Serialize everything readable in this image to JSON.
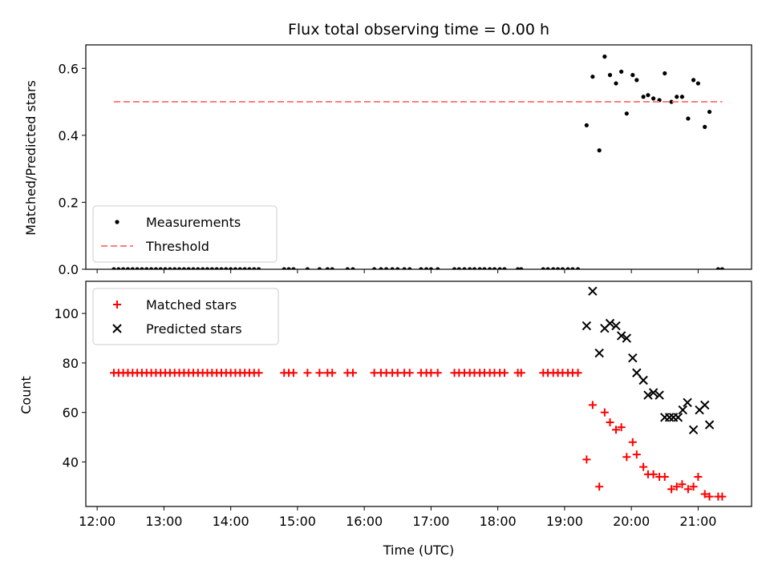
{
  "chart_data": {
    "title": "Flux total observing time = 0.00 h",
    "xlabel": "Time (UTC)",
    "x_ticks": [
      "12:00",
      "13:00",
      "14:00",
      "15:00",
      "16:00",
      "17:00",
      "18:00",
      "19:00",
      "20:00",
      "21:00"
    ],
    "x_tick_hours": [
      12,
      13,
      14,
      15,
      16,
      17,
      18,
      19,
      20,
      21
    ],
    "xlim_hours": [
      11.83,
      21.8
    ],
    "panels": [
      {
        "type": "scatter",
        "ylabel": "Matched/Predicted stars",
        "ylim": [
          0,
          0.67
        ],
        "y_ticks": [
          "0.0",
          "0.2",
          "0.4",
          "0.6"
        ],
        "y_tick_values": [
          0.0,
          0.2,
          0.4,
          0.6
        ],
        "legend_position": "lower-left",
        "series": [
          {
            "name": "Measurements",
            "marker": "dot",
            "color": "#000000",
            "points": [
              [
                12.25,
                0
              ],
              [
                12.32,
                0
              ],
              [
                12.39,
                0
              ],
              [
                12.46,
                0
              ],
              [
                12.53,
                0
              ],
              [
                12.6,
                0
              ],
              [
                12.67,
                0
              ],
              [
                12.74,
                0
              ],
              [
                12.81,
                0
              ],
              [
                12.88,
                0
              ],
              [
                12.95,
                0
              ],
              [
                13.02,
                0
              ],
              [
                13.09,
                0
              ],
              [
                13.16,
                0
              ],
              [
                13.23,
                0
              ],
              [
                13.3,
                0
              ],
              [
                13.37,
                0
              ],
              [
                13.44,
                0
              ],
              [
                13.51,
                0
              ],
              [
                13.58,
                0
              ],
              [
                13.65,
                0
              ],
              [
                13.72,
                0
              ],
              [
                13.79,
                0
              ],
              [
                13.86,
                0
              ],
              [
                13.93,
                0
              ],
              [
                14.0,
                0
              ],
              [
                14.07,
                0
              ],
              [
                14.14,
                0
              ],
              [
                14.21,
                0
              ],
              [
                14.28,
                0
              ],
              [
                14.35,
                0
              ],
              [
                14.42,
                0
              ],
              [
                14.8,
                0
              ],
              [
                14.87,
                0
              ],
              [
                14.94,
                0
              ],
              [
                15.15,
                0
              ],
              [
                15.33,
                0
              ],
              [
                15.45,
                0
              ],
              [
                15.52,
                0
              ],
              [
                15.75,
                0
              ],
              [
                15.83,
                0
              ],
              [
                16.15,
                0
              ],
              [
                16.25,
                0
              ],
              [
                16.33,
                0
              ],
              [
                16.42,
                0
              ],
              [
                16.5,
                0
              ],
              [
                16.6,
                0
              ],
              [
                16.68,
                0
              ],
              [
                16.85,
                0
              ],
              [
                16.93,
                0
              ],
              [
                17.0,
                0
              ],
              [
                17.1,
                0
              ],
              [
                17.35,
                0
              ],
              [
                17.42,
                0
              ],
              [
                17.5,
                0
              ],
              [
                17.58,
                0
              ],
              [
                17.65,
                0
              ],
              [
                17.73,
                0
              ],
              [
                17.8,
                0
              ],
              [
                17.88,
                0
              ],
              [
                17.95,
                0
              ],
              [
                18.03,
                0
              ],
              [
                18.1,
                0
              ],
              [
                18.3,
                0
              ],
              [
                18.35,
                0
              ],
              [
                18.68,
                0
              ],
              [
                18.75,
                0
              ],
              [
                18.83,
                0
              ],
              [
                18.9,
                0
              ],
              [
                18.97,
                0
              ],
              [
                19.05,
                0
              ],
              [
                19.12,
                0
              ],
              [
                19.2,
                0
              ],
              [
                19.33,
                0.43
              ],
              [
                19.42,
                0.575
              ],
              [
                19.52,
                0.355
              ],
              [
                19.6,
                0.635
              ],
              [
                19.68,
                0.58
              ],
              [
                19.77,
                0.555
              ],
              [
                19.85,
                0.59
              ],
              [
                19.93,
                0.465
              ],
              [
                20.02,
                0.58
              ],
              [
                20.08,
                0.565
              ],
              [
                20.18,
                0.515
              ],
              [
                20.25,
                0.52
              ],
              [
                20.33,
                0.51
              ],
              [
                20.42,
                0.505
              ],
              [
                20.5,
                0.585
              ],
              [
                20.6,
                0.5
              ],
              [
                20.68,
                0.515
              ],
              [
                20.76,
                0.515
              ],
              [
                20.85,
                0.45
              ],
              [
                20.93,
                0.565
              ],
              [
                21.0,
                0.555
              ],
              [
                21.1,
                0.425
              ],
              [
                21.17,
                0.47
              ],
              [
                21.3,
                0
              ],
              [
                21.36,
                0
              ]
            ]
          },
          {
            "name": "Threshold",
            "marker": "dashed-line",
            "color": "#ff7f7f",
            "points": [
              [
                12.25,
                0.5
              ],
              [
                21.36,
                0.5
              ]
            ]
          }
        ]
      },
      {
        "type": "scatter",
        "ylabel": "Count",
        "ylim": [
          22,
          113
        ],
        "y_ticks": [
          "40",
          "60",
          "80",
          "100"
        ],
        "y_tick_values": [
          40,
          60,
          80,
          100
        ],
        "legend_position": "upper-left",
        "series": [
          {
            "name": "Matched stars",
            "marker": "plus",
            "color": "#ff0000",
            "points": [
              [
                12.25,
                76
              ],
              [
                12.32,
                76
              ],
              [
                12.39,
                76
              ],
              [
                12.46,
                76
              ],
              [
                12.53,
                76
              ],
              [
                12.6,
                76
              ],
              [
                12.67,
                76
              ],
              [
                12.74,
                76
              ],
              [
                12.81,
                76
              ],
              [
                12.88,
                76
              ],
              [
                12.95,
                76
              ],
              [
                13.02,
                76
              ],
              [
                13.09,
                76
              ],
              [
                13.16,
                76
              ],
              [
                13.23,
                76
              ],
              [
                13.3,
                76
              ],
              [
                13.37,
                76
              ],
              [
                13.44,
                76
              ],
              [
                13.51,
                76
              ],
              [
                13.58,
                76
              ],
              [
                13.65,
                76
              ],
              [
                13.72,
                76
              ],
              [
                13.79,
                76
              ],
              [
                13.86,
                76
              ],
              [
                13.93,
                76
              ],
              [
                14.0,
                76
              ],
              [
                14.07,
                76
              ],
              [
                14.14,
                76
              ],
              [
                14.21,
                76
              ],
              [
                14.28,
                76
              ],
              [
                14.35,
                76
              ],
              [
                14.42,
                76
              ],
              [
                14.8,
                76
              ],
              [
                14.87,
                76
              ],
              [
                14.94,
                76
              ],
              [
                15.15,
                76
              ],
              [
                15.33,
                76
              ],
              [
                15.45,
                76
              ],
              [
                15.52,
                76
              ],
              [
                15.75,
                76
              ],
              [
                15.83,
                76
              ],
              [
                16.15,
                76
              ],
              [
                16.25,
                76
              ],
              [
                16.33,
                76
              ],
              [
                16.42,
                76
              ],
              [
                16.5,
                76
              ],
              [
                16.6,
                76
              ],
              [
                16.68,
                76
              ],
              [
                16.85,
                76
              ],
              [
                16.93,
                76
              ],
              [
                17.0,
                76
              ],
              [
                17.1,
                76
              ],
              [
                17.35,
                76
              ],
              [
                17.42,
                76
              ],
              [
                17.5,
                76
              ],
              [
                17.58,
                76
              ],
              [
                17.65,
                76
              ],
              [
                17.73,
                76
              ],
              [
                17.8,
                76
              ],
              [
                17.88,
                76
              ],
              [
                17.95,
                76
              ],
              [
                18.03,
                76
              ],
              [
                18.1,
                76
              ],
              [
                18.3,
                76
              ],
              [
                18.35,
                76
              ],
              [
                18.68,
                76
              ],
              [
                18.75,
                76
              ],
              [
                18.83,
                76
              ],
              [
                18.9,
                76
              ],
              [
                18.97,
                76
              ],
              [
                19.05,
                76
              ],
              [
                19.12,
                76
              ],
              [
                19.2,
                76
              ],
              [
                19.33,
                41
              ],
              [
                19.42,
                63
              ],
              [
                19.52,
                30
              ],
              [
                19.6,
                60
              ],
              [
                19.68,
                56
              ],
              [
                19.77,
                53
              ],
              [
                19.85,
                54
              ],
              [
                19.93,
                42
              ],
              [
                20.02,
                48
              ],
              [
                20.08,
                43
              ],
              [
                20.18,
                38
              ],
              [
                20.25,
                35
              ],
              [
                20.33,
                35
              ],
              [
                20.42,
                34
              ],
              [
                20.5,
                34
              ],
              [
                20.6,
                29
              ],
              [
                20.68,
                30
              ],
              [
                20.76,
                31
              ],
              [
                20.85,
                29
              ],
              [
                20.93,
                30
              ],
              [
                21.0,
                34
              ],
              [
                21.1,
                27
              ],
              [
                21.17,
                26
              ],
              [
                21.3,
                26
              ],
              [
                21.36,
                26
              ]
            ]
          },
          {
            "name": "Predicted stars",
            "marker": "x",
            "color": "#000000",
            "points": [
              [
                19.33,
                95
              ],
              [
                19.42,
                109
              ],
              [
                19.52,
                84
              ],
              [
                19.6,
                94
              ],
              [
                19.68,
                96
              ],
              [
                19.77,
                95
              ],
              [
                19.85,
                91
              ],
              [
                19.93,
                90
              ],
              [
                20.02,
                82
              ],
              [
                20.08,
                76
              ],
              [
                20.18,
                73
              ],
              [
                20.25,
                67
              ],
              [
                20.33,
                68
              ],
              [
                20.42,
                67
              ],
              [
                20.5,
                58
              ],
              [
                20.57,
                58
              ],
              [
                20.63,
                58
              ],
              [
                20.7,
                58
              ],
              [
                20.77,
                61
              ],
              [
                20.84,
                64
              ],
              [
                20.93,
                53
              ],
              [
                21.02,
                61
              ],
              [
                21.1,
                63
              ],
              [
                21.17,
                55
              ]
            ]
          }
        ]
      }
    ]
  }
}
